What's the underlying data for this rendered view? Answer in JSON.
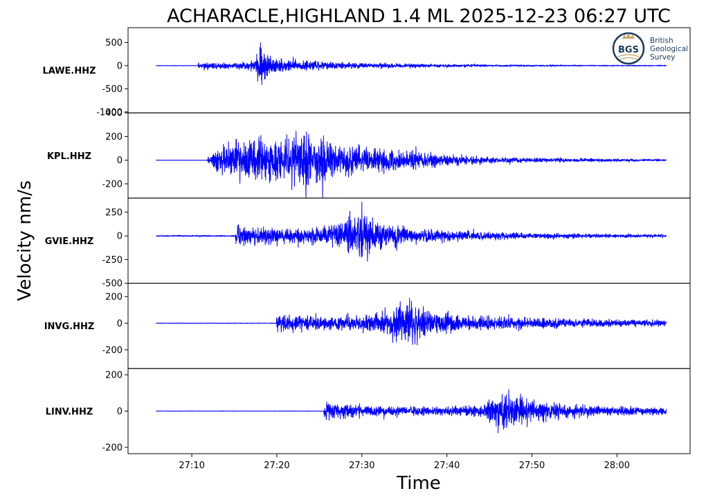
{
  "chart_data": {
    "type": "line",
    "title": "ACHARACLE,HIGHLAND 1.4 ML   2025-12-23 06:27 UTC",
    "xlabel": "Time",
    "ylabel": "Velocity nm/s",
    "line_color": "#0000ff",
    "x_ticks": [
      "27:10",
      "27:20",
      "27:30",
      "27:40",
      "27:50",
      "28:00"
    ],
    "x_tick_seconds": [
      10,
      20,
      30,
      40,
      50,
      60
    ],
    "xlim_seconds": [
      2.5,
      68.6
    ],
    "trace_start_seconds": 5.8,
    "trace_end_seconds": 65.8,
    "panels": [
      {
        "station": "LAWE.HHZ",
        "ylim": [
          -1020,
          820
        ],
        "yticks": [
          500,
          0,
          -500,
          -1000
        ],
        "ytick_labels": [
          "500",
          "0",
          "-500",
          "-1000"
        ],
        "arrival_seconds": 10.8,
        "noise": 8,
        "envelope": [
          [
            5.8,
            8
          ],
          [
            10.7,
            8
          ],
          [
            10.8,
            110
          ],
          [
            12,
            95
          ],
          [
            15,
            85
          ],
          [
            17.5,
            150
          ],
          [
            17.9,
            760
          ],
          [
            18.5,
            450
          ],
          [
            20,
            200
          ],
          [
            23,
            150
          ],
          [
            27,
            95
          ],
          [
            35,
            55
          ],
          [
            45,
            30
          ],
          [
            55,
            18
          ],
          [
            65.8,
            14
          ]
        ]
      },
      {
        "station": "KPL.HHZ",
        "ylim": [
          -320,
          400
        ],
        "yticks": [
          400,
          200,
          0,
          -200
        ],
        "ytick_labels": [
          "400",
          "200",
          "0",
          "-200"
        ],
        "arrival_seconds": 11.8,
        "noise": 2,
        "envelope": [
          [
            5.8,
            2
          ],
          [
            11.8,
            2
          ],
          [
            12,
            60
          ],
          [
            13.5,
            170
          ],
          [
            16,
            240
          ],
          [
            19,
            230
          ],
          [
            22,
            260
          ],
          [
            23.8,
            330
          ],
          [
            26,
            210
          ],
          [
            30,
            150
          ],
          [
            35,
            110
          ],
          [
            40,
            60
          ],
          [
            45,
            35
          ],
          [
            55,
            20
          ],
          [
            65.8,
            12
          ]
        ]
      },
      {
        "station": "GVIE.HHZ",
        "ylim": [
          -500,
          400
        ],
        "yticks": [
          250,
          0,
          -250,
          -500
        ],
        "ytick_labels": [
          "250",
          "0",
          "-250",
          "-500"
        ],
        "arrival_seconds": 15.2,
        "noise": 8,
        "envelope": [
          [
            5.8,
            10
          ],
          [
            15.1,
            10
          ],
          [
            15.2,
            170
          ],
          [
            17,
            120
          ],
          [
            20,
            100
          ],
          [
            25,
            120
          ],
          [
            28.5,
            250
          ],
          [
            30,
            330
          ],
          [
            32,
            210
          ],
          [
            36,
            110
          ],
          [
            42,
            70
          ],
          [
            50,
            40
          ],
          [
            58,
            28
          ],
          [
            65.8,
            22
          ]
        ]
      },
      {
        "station": "INVG.HHZ",
        "ylim": [
          -340,
          300
        ],
        "yticks": [
          200,
          0,
          -200
        ],
        "ytick_labels": [
          "200",
          "0",
          "-200"
        ],
        "arrival_seconds": 20.0,
        "noise": 3,
        "envelope": [
          [
            5.8,
            3
          ],
          [
            19.9,
            3
          ],
          [
            20,
            90
          ],
          [
            22,
            75
          ],
          [
            26,
            65
          ],
          [
            30,
            75
          ],
          [
            33.5,
            160
          ],
          [
            35.5,
            260
          ],
          [
            38,
            120
          ],
          [
            42,
            75
          ],
          [
            50,
            55
          ],
          [
            58,
            40
          ],
          [
            65.8,
            30
          ]
        ]
      },
      {
        "station": "LINV.HHZ",
        "ylim": [
          -235,
          235
        ],
        "yticks": [
          200,
          0,
          -200
        ],
        "ytick_labels": [
          "200",
          "0",
          "-200"
        ],
        "arrival_seconds": 25.6,
        "noise": 1.5,
        "envelope": [
          [
            5.8,
            1.5
          ],
          [
            25.5,
            1.5
          ],
          [
            25.6,
            60
          ],
          [
            27,
            55
          ],
          [
            30,
            42
          ],
          [
            38,
            28
          ],
          [
            44,
            40
          ],
          [
            46,
            140
          ],
          [
            47,
            160
          ],
          [
            49,
            100
          ],
          [
            52,
            65
          ],
          [
            56,
            45
          ],
          [
            60,
            32
          ],
          [
            65.8,
            25
          ]
        ]
      }
    ]
  },
  "logo": {
    "abbr": "BGS",
    "line1": "British",
    "line2": "Geological",
    "line3": "Survey"
  }
}
